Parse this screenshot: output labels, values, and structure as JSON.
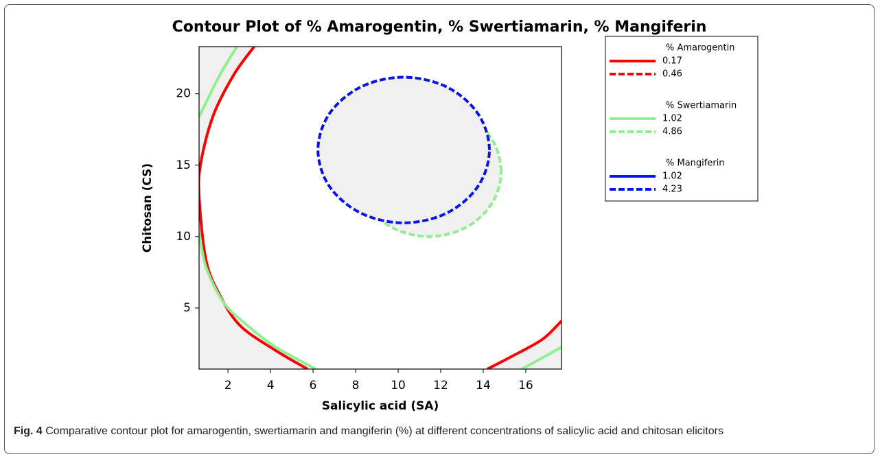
{
  "chart_data": {
    "type": "contour",
    "title": "Contour Plot of % Amarogentin, % Swertiamarin, % Mangiferin",
    "xlabel": "Salicylic acid (SA)",
    "ylabel": "Chitosan (CS)",
    "xlim": [
      0.64,
      17.68
    ],
    "ylim": [
      0.72,
      23.3
    ],
    "xticks": [
      2,
      4,
      6,
      8,
      10,
      12,
      14,
      16
    ],
    "yticks": [
      5,
      10,
      15,
      20
    ],
    "shade_color": "#f0f0f0",
    "series": [
      {
        "name": "% Amarogentin",
        "color": "#ff0000",
        "levels": [
          {
            "value": 0.17,
            "style": "solid",
            "lines": [
              {
                "x": [
                  3.23,
                  2.26,
                  1.29,
                  0.71,
                  0.65,
                  0.97,
                  1.61,
                  2.58,
                  4.19,
                  5.74
                ],
                "y": [
                  23.3,
                  21.3,
                  18.41,
                  15.05,
                  12.64,
                  8.32,
                  5.91,
                  3.75,
                  2.07,
                  0.72
                ]
              },
              {
                "x": [
                  14.19,
                  15.32,
                  16.77,
                  17.68
                ],
                "y": [
                  0.72,
                  1.59,
                  2.79,
                  4.09
                ]
              }
            ]
          },
          {
            "value": 0.46,
            "style": "dashed",
            "lines": []
          }
        ]
      },
      {
        "name": "% Swertiamarin",
        "color": "#8ff08f",
        "levels": [
          {
            "value": 1.02,
            "style": "solid",
            "lines": [
              {
                "x": [
                  0.65,
                  1.61,
                  2.42
                ],
                "y": [
                  18.41,
                  21.3,
                  23.3
                ]
              },
              {
                "x": [
                  0.65,
                  0.97,
                  1.77,
                  2.74,
                  4.19,
                  6.13
                ],
                "y": [
                  10.24,
                  7.84,
                  5.43,
                  3.99,
                  2.31,
                  0.72
                ]
              },
              {
                "x": [
                  15.81,
                  16.77,
                  17.68
                ],
                "y": [
                  0.72,
                  1.5,
                  2.26
                ]
              }
            ]
          },
          {
            "value": 4.86,
            "style": "dashed",
            "lines": [
              {
                "x": [
                  14.84,
                  14.39,
                  13.15,
                  11.45,
                  9.75,
                  8.51,
                  8.06,
                  8.51,
                  9.75,
                  11.45,
                  13.15,
                  14.39,
                  14.84
                ],
                "y": [
                  14.57,
                  16.86,
                  18.53,
                  19.14,
                  18.53,
                  16.86,
                  14.57,
                  12.28,
                  10.61,
                  10.0,
                  10.61,
                  12.28,
                  14.57
                ]
              }
            ]
          }
        ]
      },
      {
        "name": "% Mangiferin",
        "color": "#0a14e6",
        "levels": [
          {
            "value": 1.02,
            "style": "solid",
            "lines": []
          },
          {
            "value": 4.23,
            "style": "dashed",
            "lines": [
              {
                "x": [
                  14.29,
                  13.75,
                  12.28,
                  10.26,
                  8.25,
                  6.77,
                  6.23,
                  6.77,
                  8.25,
                  10.26,
                  12.28,
                  13.75,
                  14.29
                ],
                "y": [
                  16.06,
                  18.61,
                  20.48,
                  21.16,
                  20.48,
                  18.61,
                  16.06,
                  13.51,
                  11.64,
                  10.96,
                  11.64,
                  13.51,
                  16.06
                ]
              }
            ]
          }
        ]
      }
    ],
    "caption": {
      "label": "Fig. 4",
      "text": "Comparative contour plot for amarogentin, swertiamarin and mangiferin (%) at different concentrations of salicylic acid and chitosan elicitors"
    }
  }
}
